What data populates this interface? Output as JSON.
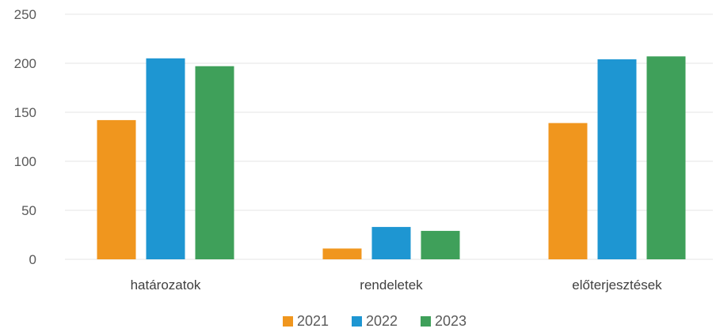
{
  "chart_data": {
    "type": "bar",
    "title": "",
    "xlabel": "",
    "ylabel": "",
    "categories": [
      "határozatok",
      "rendeletek",
      "előterjesztések"
    ],
    "series": [
      {
        "name": "2021",
        "color": "#F0961E",
        "values": [
          142,
          11,
          139
        ]
      },
      {
        "name": "2022",
        "color": "#1E96D2",
        "values": [
          205,
          33,
          204
        ]
      },
      {
        "name": "2023",
        "color": "#3FA05A",
        "values": [
          197,
          29,
          207
        ]
      }
    ],
    "ylim": [
      0,
      250
    ],
    "yticks": [
      0,
      50,
      100,
      150,
      200,
      250
    ],
    "grid": true,
    "legend_position": "bottom"
  }
}
